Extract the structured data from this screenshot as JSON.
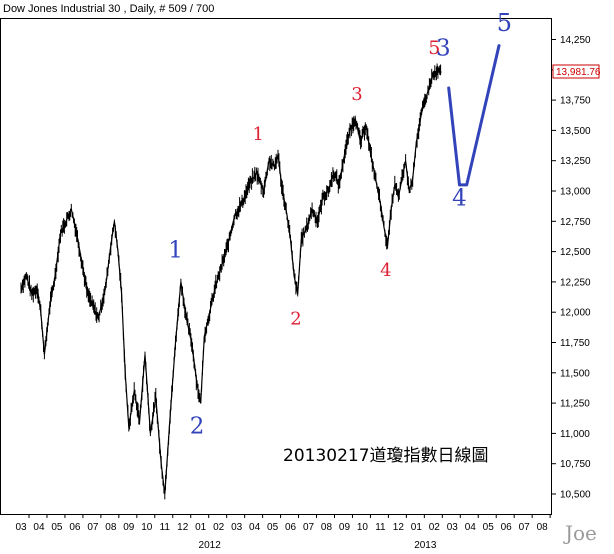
{
  "chart_data": {
    "type": "line",
    "title": "Dow Jones Industrial 30 , Daily, # 509 / 700",
    "caption": "20130217道瓊指數日線圖",
    "signature": "Joe",
    "last_value_label": "13,981.76",
    "ylim": [
      10400,
      14450
    ],
    "y_ticks": [
      {
        "value": 10500,
        "label": "10,500"
      },
      {
        "value": 10750,
        "label": "10,750"
      },
      {
        "value": 11000,
        "label": "11,000"
      },
      {
        "value": 11250,
        "label": "11,250"
      },
      {
        "value": 11500,
        "label": "11,500"
      },
      {
        "value": 11750,
        "label": "11,750"
      },
      {
        "value": 12000,
        "label": "12,000"
      },
      {
        "value": 12250,
        "label": "12,250"
      },
      {
        "value": 12500,
        "label": "12,500"
      },
      {
        "value": 12750,
        "label": "12,750"
      },
      {
        "value": 13000,
        "label": "13,000"
      },
      {
        "value": 13250,
        "label": "13,250"
      },
      {
        "value": 13500,
        "label": "13,500"
      },
      {
        "value": 13750,
        "label": "13,750"
      },
      {
        "value": 14000,
        "label": "14,000"
      },
      {
        "value": 14250,
        "label": "14,250"
      }
    ],
    "x_ticks": [
      {
        "m": 0,
        "label": "03"
      },
      {
        "m": 1,
        "label": "04"
      },
      {
        "m": 2,
        "label": "05"
      },
      {
        "m": 3,
        "label": "06"
      },
      {
        "m": 4,
        "label": "07"
      },
      {
        "m": 5,
        "label": "08"
      },
      {
        "m": 6,
        "label": "09"
      },
      {
        "m": 7,
        "label": "10"
      },
      {
        "m": 8,
        "label": "11"
      },
      {
        "m": 9,
        "label": "12"
      },
      {
        "m": 10,
        "label": "01"
      },
      {
        "m": 11,
        "label": "02"
      },
      {
        "m": 12,
        "label": "03"
      },
      {
        "m": 13,
        "label": "04"
      },
      {
        "m": 14,
        "label": "05"
      },
      {
        "m": 15,
        "label": "06"
      },
      {
        "m": 16,
        "label": "07"
      },
      {
        "m": 17,
        "label": "08"
      },
      {
        "m": 18,
        "label": "09"
      },
      {
        "m": 19,
        "label": "10"
      },
      {
        "m": 20,
        "label": "11"
      },
      {
        "m": 21,
        "label": "12"
      },
      {
        "m": 22,
        "label": "01"
      },
      {
        "m": 23,
        "label": "02"
      },
      {
        "m": 24,
        "label": "03"
      },
      {
        "m": 25,
        "label": "04"
      },
      {
        "m": 26,
        "label": "05"
      },
      {
        "m": 27,
        "label": "06"
      },
      {
        "m": 28,
        "label": "07"
      },
      {
        "m": 29,
        "label": "08"
      }
    ],
    "year_labels": [
      {
        "m": 10.5,
        "label": "2012"
      },
      {
        "m": 22.5,
        "label": "2013"
      }
    ],
    "series": [
      {
        "values": [
          [
            0.0,
            12200
          ],
          [
            0.3,
            12300
          ],
          [
            0.6,
            12150
          ],
          [
            0.9,
            12200
          ],
          [
            1.1,
            12000
          ],
          [
            1.3,
            11650
          ],
          [
            1.6,
            12050
          ],
          [
            1.9,
            12300
          ],
          [
            2.2,
            12650
          ],
          [
            2.5,
            12750
          ],
          [
            2.8,
            12850
          ],
          [
            3.1,
            12650
          ],
          [
            3.4,
            12400
          ],
          [
            3.7,
            12150
          ],
          [
            4.0,
            12050
          ],
          [
            4.3,
            11950
          ],
          [
            4.7,
            12200
          ],
          [
            5.0,
            12550
          ],
          [
            5.2,
            12750
          ],
          [
            5.4,
            12500
          ],
          [
            5.6,
            12150
          ],
          [
            5.8,
            11500
          ],
          [
            6.0,
            11050
          ],
          [
            6.3,
            11350
          ],
          [
            6.6,
            11100
          ],
          [
            6.9,
            11650
          ],
          [
            7.2,
            11000
          ],
          [
            7.5,
            11300
          ],
          [
            7.8,
            10750
          ],
          [
            8.0,
            10500
          ],
          [
            8.3,
            11150
          ],
          [
            8.6,
            11750
          ],
          [
            8.9,
            12250
          ],
          [
            9.2,
            11950
          ],
          [
            9.5,
            11750
          ],
          [
            9.8,
            11400
          ],
          [
            10.0,
            11250
          ],
          [
            10.2,
            11800
          ],
          [
            10.5,
            12000
          ],
          [
            10.8,
            12200
          ],
          [
            11.1,
            12350
          ],
          [
            11.5,
            12550
          ],
          [
            11.9,
            12800
          ],
          [
            12.3,
            12900
          ],
          [
            12.7,
            13050
          ],
          [
            13.1,
            13150
          ],
          [
            13.5,
            13000
          ],
          [
            13.8,
            13250
          ],
          [
            14.1,
            13200
          ],
          [
            14.3,
            13300
          ],
          [
            14.5,
            13050
          ],
          [
            14.8,
            12800
          ],
          [
            15.0,
            12600
          ],
          [
            15.2,
            12300
          ],
          [
            15.4,
            12150
          ],
          [
            15.6,
            12600
          ],
          [
            15.9,
            12700
          ],
          [
            16.2,
            12850
          ],
          [
            16.5,
            12750
          ],
          [
            16.8,
            12950
          ],
          [
            17.1,
            13000
          ],
          [
            17.4,
            13150
          ],
          [
            17.7,
            13050
          ],
          [
            18.0,
            13300
          ],
          [
            18.3,
            13500
          ],
          [
            18.6,
            13600
          ],
          [
            18.9,
            13400
          ],
          [
            19.2,
            13550
          ],
          [
            19.4,
            13350
          ],
          [
            19.6,
            13200
          ],
          [
            19.8,
            13050
          ],
          [
            20.0,
            12900
          ],
          [
            20.2,
            12700
          ],
          [
            20.4,
            12550
          ],
          [
            20.6,
            12850
          ],
          [
            20.8,
            13050
          ],
          [
            21.0,
            12950
          ],
          [
            21.2,
            13100
          ],
          [
            21.4,
            13250
          ],
          [
            21.6,
            13000
          ],
          [
            21.8,
            13100
          ],
          [
            22.0,
            13400
          ],
          [
            22.3,
            13650
          ],
          [
            22.6,
            13800
          ],
          [
            22.9,
            13950
          ],
          [
            23.2,
            13980
          ],
          [
            23.4,
            13982
          ]
        ]
      }
    ],
    "projection": {
      "points": [
        [
          23.8,
          13850
        ],
        [
          24.4,
          13050
        ],
        [
          24.8,
          13050
        ],
        [
          26.6,
          14200
        ]
      ],
      "color": "#3344bb"
    },
    "wave_labels": [
      {
        "text": "1",
        "m": 13.2,
        "v": 13420,
        "color": "#dd2233",
        "size": 18
      },
      {
        "text": "2",
        "m": 15.3,
        "v": 11900,
        "color": "#dd2233",
        "size": 18
      },
      {
        "text": "3",
        "m": 18.7,
        "v": 13750,
        "color": "#dd2233",
        "size": 18
      },
      {
        "text": "4",
        "m": 20.3,
        "v": 12300,
        "color": "#dd2233",
        "size": 18
      },
      {
        "text": "5",
        "m": 23.0,
        "v": 14130,
        "color": "#dd2233",
        "size": 19
      },
      {
        "text": "1",
        "m": 8.6,
        "v": 12450,
        "color": "#3344bb",
        "size": 23
      },
      {
        "text": "2",
        "m": 9.8,
        "v": 11000,
        "color": "#3344bb",
        "size": 23
      },
      {
        "text": "3",
        "m": 23.5,
        "v": 14120,
        "color": "#3344bb",
        "size": 23
      },
      {
        "text": "4",
        "m": 24.4,
        "v": 12880,
        "color": "#3344bb",
        "size": 23
      },
      {
        "text": "5",
        "m": 26.9,
        "v": 14320,
        "color": "#3344bb",
        "size": 24
      }
    ],
    "grid": false,
    "legend": "none"
  }
}
